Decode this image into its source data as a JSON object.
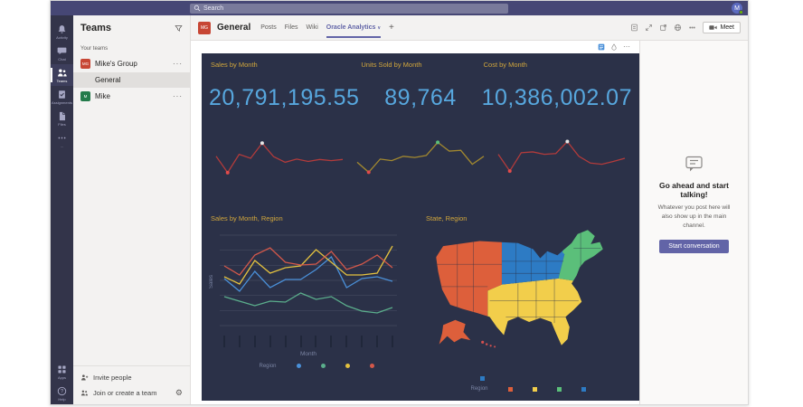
{
  "colors": {
    "accent": "#6264A7",
    "topbar": "#464775",
    "rail": "#33344A"
  },
  "topbar": {
    "search_placeholder": "Search",
    "avatar_initials": "M"
  },
  "rail": {
    "items": [
      {
        "label": "Activity"
      },
      {
        "label": "Chat"
      },
      {
        "label": "Teams"
      },
      {
        "label": "Assignments"
      },
      {
        "label": "Files"
      },
      {
        "label": "..."
      }
    ],
    "bottom": [
      {
        "label": "Apps"
      },
      {
        "label": "Help"
      }
    ]
  },
  "teams_panel": {
    "title": "Teams",
    "section_label": "Your teams",
    "teams": [
      {
        "name": "Mike's Group",
        "initials": "MG",
        "color": "#C74634",
        "more": "···"
      },
      {
        "name": "Mike",
        "initials": "M",
        "color": "#237B4B",
        "more": "···"
      }
    ],
    "selected_channel": "General",
    "footer": {
      "invite": "Invite people",
      "join": "Join or create a team",
      "gear": "⚙"
    }
  },
  "channel_header": {
    "team_initials": "MG",
    "team_color": "#C74634",
    "title": "General",
    "tabs": [
      {
        "label": "Posts"
      },
      {
        "label": "Files"
      },
      {
        "label": "Wiki"
      }
    ],
    "active_tab": "Oracle Analytics",
    "active_tab_chevron": "∨",
    "add_tab": "+",
    "more": "⋯",
    "meet_label": "Meet"
  },
  "embed_toolbar": {
    "more": "⋯"
  },
  "dashboard": {
    "background": "#2B3148",
    "title_color": "#D2A73C",
    "value_color": "#57A7DE",
    "kpis": [
      {
        "title": "Sales by Month",
        "value": "20,791,195.55"
      },
      {
        "title": "Units Sold by Month",
        "value": "89,764"
      },
      {
        "title": "Cost by Month",
        "value": "10,386,002.07"
      }
    ]
  },
  "empty_state": {
    "title": "Go ahead and start talking!",
    "body": "Whatever you post here will also show up in the main channel.",
    "button": "Start conversation",
    "button_color": "#6264A7"
  },
  "chart_data": [
    {
      "type": "line",
      "role": "kpi-sparkline",
      "title": "Sales by Month",
      "kpi_value": "20,791,195.55",
      "color": "#B23B3B",
      "values": [
        55,
        14,
        60,
        50,
        88,
        54,
        40,
        48,
        42,
        47,
        44,
        47
      ],
      "min_index": 1,
      "max_index": 4,
      "min_color": "#E14B4B",
      "max_color": "#E6E6E6"
    },
    {
      "type": "line",
      "role": "kpi-sparkline",
      "title": "Units Sold by Month",
      "kpi_value": "89,764",
      "color": "#A3892F",
      "values": [
        40,
        15,
        48,
        44,
        55,
        52,
        57,
        90,
        68,
        70,
        35,
        55
      ],
      "min_index": 1,
      "max_index": 7,
      "min_color": "#E14B4B",
      "max_color": "#5BBF7A"
    },
    {
      "type": "line",
      "role": "kpi-sparkline",
      "title": "Cost by Month",
      "kpi_value": "10,386,002.07",
      "color": "#B23B3B",
      "values": [
        60,
        18,
        64,
        66,
        60,
        62,
        92,
        55,
        38,
        35,
        42,
        50
      ],
      "min_index": 1,
      "max_index": 6,
      "min_color": "#E14B4B",
      "max_color": "#E6E6E6"
    },
    {
      "type": "line",
      "title": "Sales by Month, Region",
      "xlabel": "Month",
      "ylabel": "Sales",
      "legend_title": "Region",
      "grid": true,
      "x_tick_count": 12,
      "legend_position": "bottom",
      "series": [
        {
          "color": "#4A90D9",
          "values": [
            56,
            42,
            64,
            46,
            55,
            55,
            66,
            80,
            46,
            56,
            58,
            53
          ]
        },
        {
          "color": "#5BAE8C",
          "values": [
            36,
            31,
            26,
            31,
            30,
            40,
            33,
            36,
            26,
            20,
            18,
            24
          ]
        },
        {
          "color": "#E3C13F",
          "values": [
            58,
            50,
            76,
            62,
            68,
            70,
            88,
            74,
            60,
            60,
            62,
            92
          ]
        },
        {
          "color": "#D4584A",
          "values": [
            70,
            60,
            82,
            90,
            74,
            71,
            72,
            86,
            66,
            72,
            82,
            68
          ]
        }
      ],
      "legend_colors": [
        "#4A90D9",
        "#5BAE8C",
        "#E3C13F",
        "#D4584A"
      ]
    },
    {
      "type": "map",
      "title": "State, Region",
      "legend_title": "Region",
      "legend_position": "bottom",
      "region_colors": {
        "west": "#DD5F3B",
        "central": "#2D7BC4",
        "south": "#F2CE4B",
        "northeast": "#5BBF7A",
        "alaska": "#DD5F3B",
        "hawaii": "#D4504F"
      },
      "legend_colors": [
        "#DD5F3B",
        "#F2CE4B",
        "#5BBF7A",
        "#2D7BC4"
      ],
      "overflow_marker_color": "#2D7BC4"
    }
  ]
}
